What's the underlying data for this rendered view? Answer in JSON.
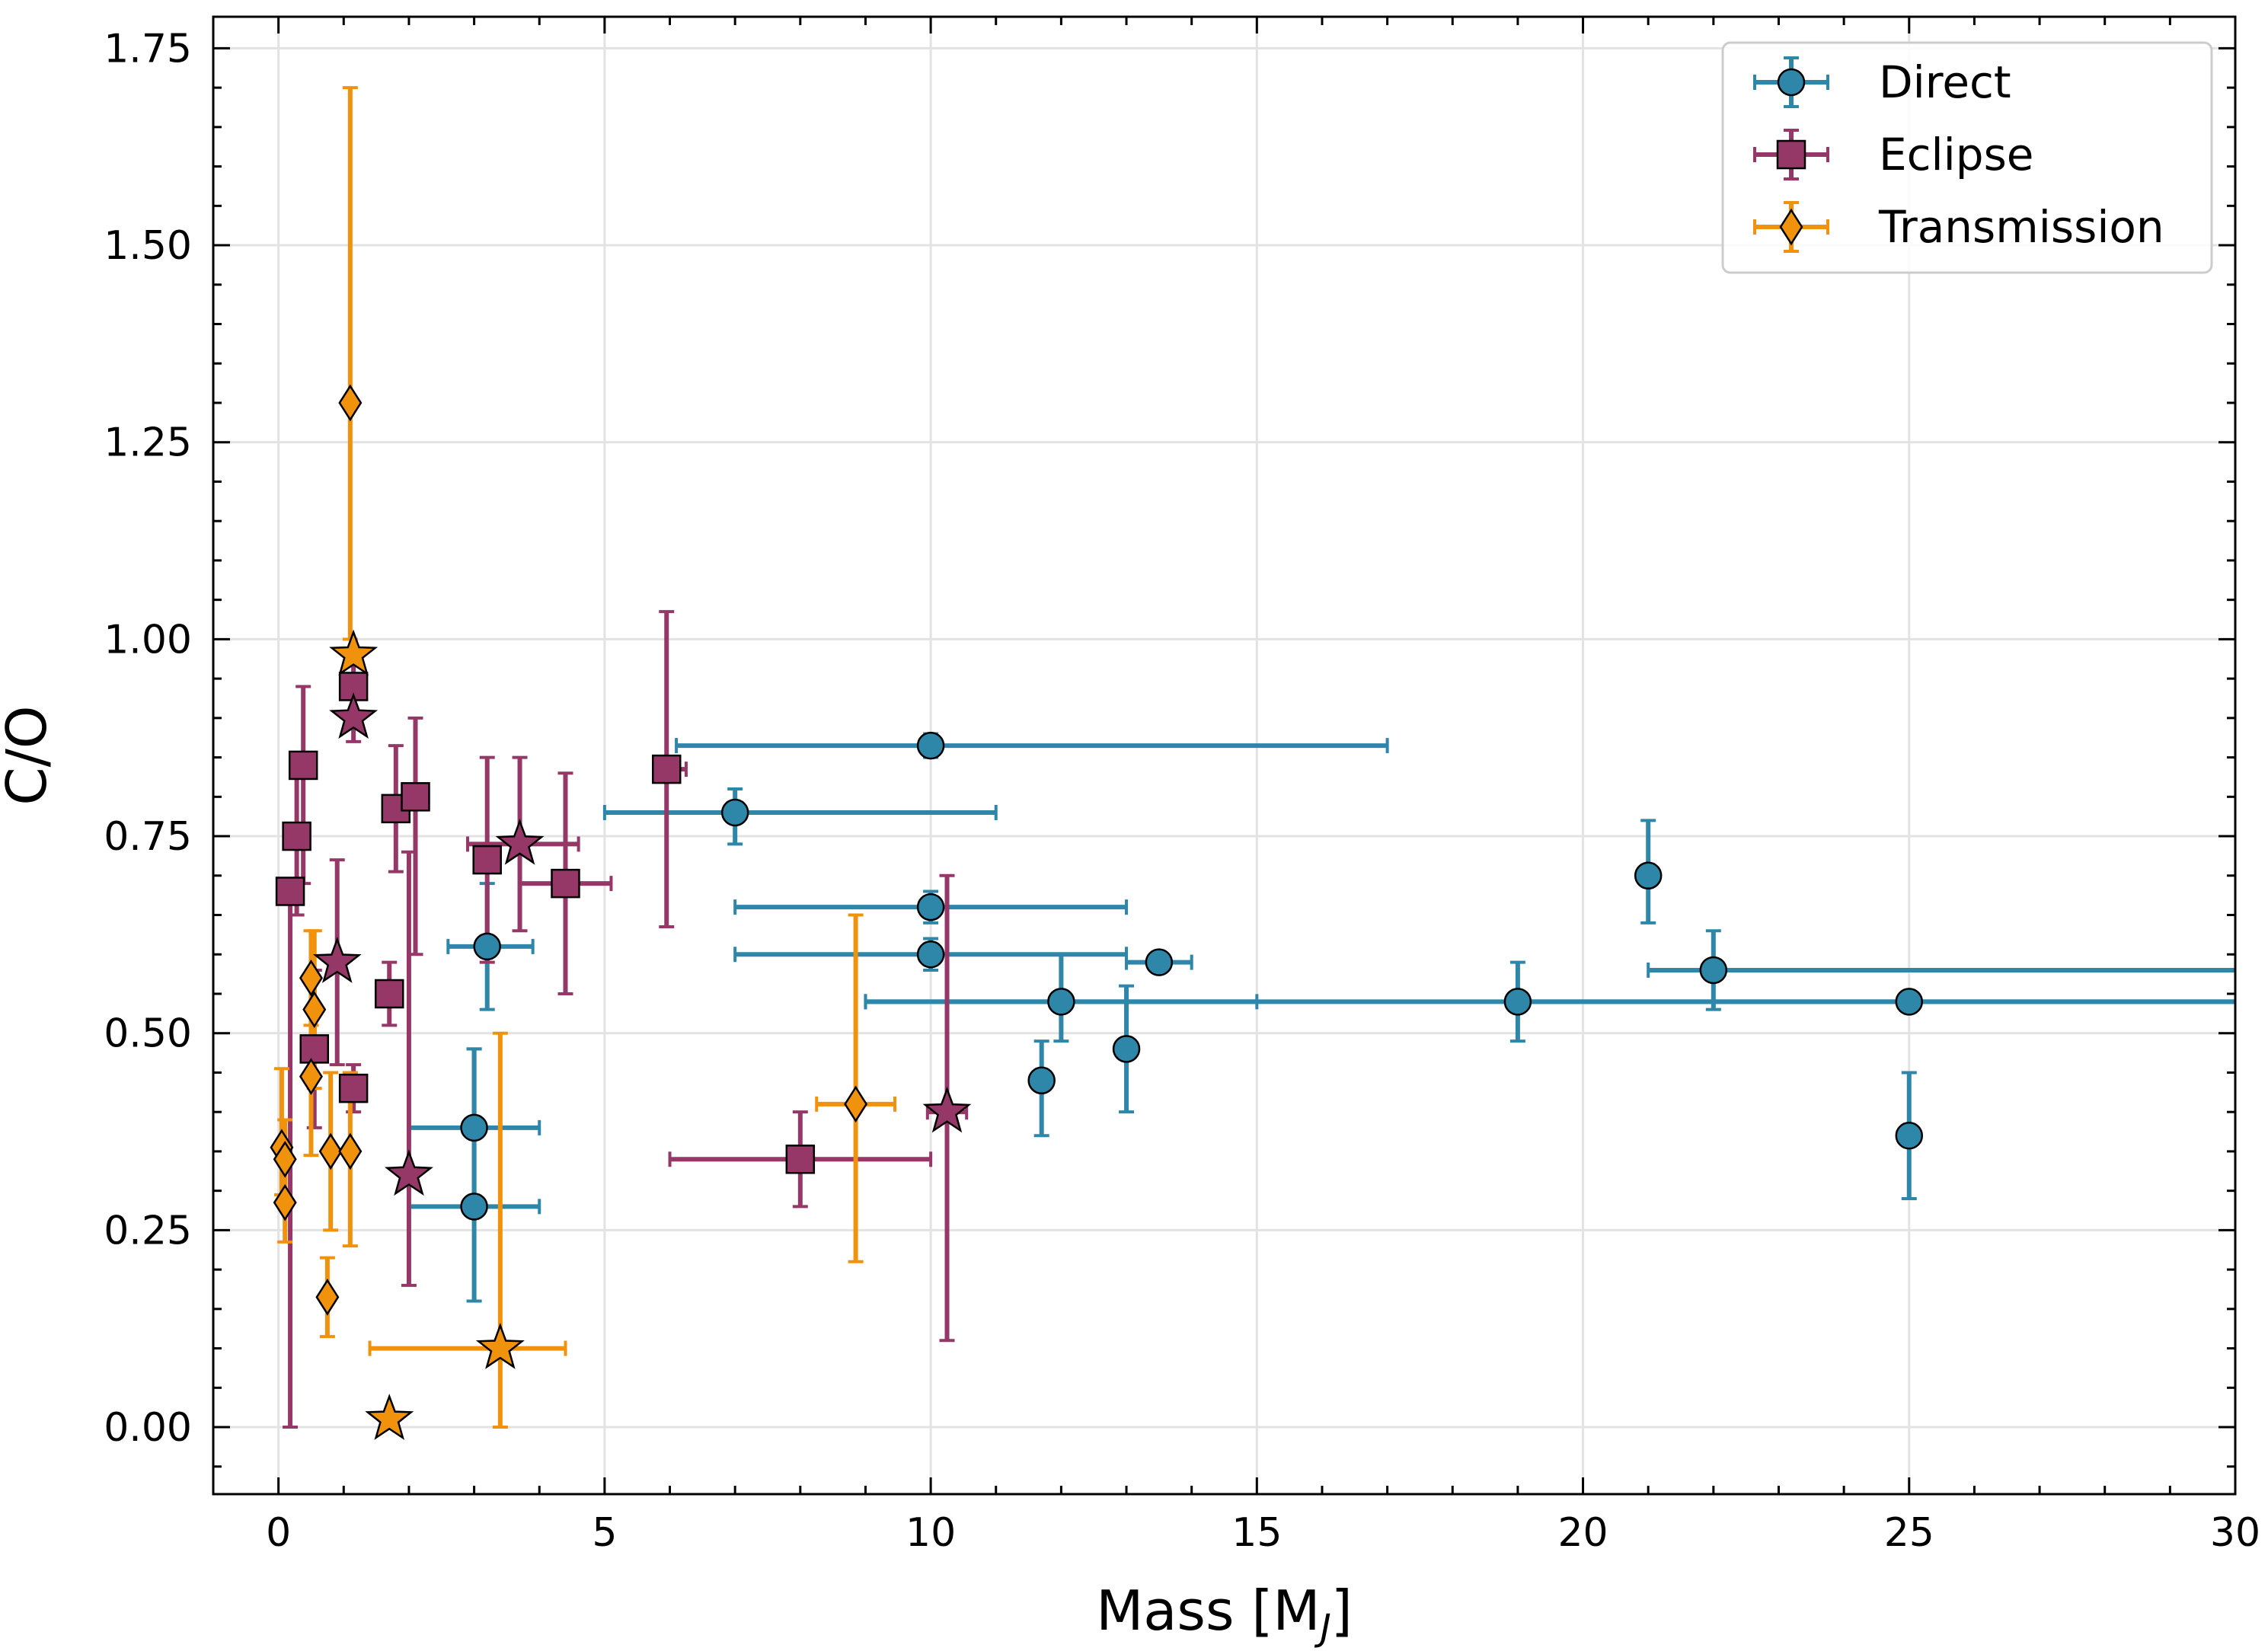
{
  "chart_data": {
    "type": "scatter",
    "title": "",
    "xlabel": "Mass [M",
    "xlabel_subscript": "J",
    "xlabel_suffix": "]",
    "ylabel": "C/O",
    "xlim": [
      -1,
      30
    ],
    "ylim": [
      -0.085,
      1.79
    ],
    "xticks": [
      0,
      5,
      10,
      15,
      20,
      25,
      30
    ],
    "xtick_labels": [
      "0",
      "5",
      "10",
      "15",
      "20",
      "25",
      "30"
    ],
    "yticks": [
      0.0,
      0.25,
      0.5,
      0.75,
      1.0,
      1.25,
      1.5,
      1.75
    ],
    "ytick_labels": [
      "0.00",
      "0.25",
      "0.50",
      "0.75",
      "1.00",
      "1.25",
      "1.50",
      "1.75"
    ],
    "grid": true,
    "legend_position": "top-right",
    "legend": [
      "Direct",
      "Eclipse",
      "Transmission"
    ],
    "series": [
      {
        "name": "Direct",
        "color": "#2e86a8",
        "marker": "circle",
        "points": [
          {
            "x": 10.0,
            "y": 0.865,
            "xerr": [
              3.9,
              7.0
            ],
            "yerr": [
              0.015,
              0.015
            ]
          },
          {
            "x": 7.0,
            "y": 0.78,
            "xerr": [
              2.0,
              4.0
            ],
            "yerr": [
              0.04,
              0.03
            ]
          },
          {
            "x": 3.2,
            "y": 0.61,
            "xerr": [
              0.6,
              0.7
            ],
            "yerr": [
              0.08,
              0.08
            ]
          },
          {
            "x": 10.0,
            "y": 0.66,
            "xerr": [
              3.0,
              3.0
            ],
            "yerr": [
              0.02,
              0.02
            ]
          },
          {
            "x": 10.0,
            "y": 0.6,
            "xerr": [
              3.0,
              3.0
            ],
            "yerr": [
              0.02,
              0.02
            ]
          },
          {
            "x": 12.0,
            "y": 0.54,
            "xerr": [
              3.0,
              3.0
            ],
            "yerr": [
              0.05,
              0.06
            ]
          },
          {
            "x": 13.5,
            "y": 0.59,
            "xerr": [
              0.5,
              0.5
            ],
            "yerr": [
              0.01,
              0.01
            ]
          },
          {
            "x": 11.7,
            "y": 0.44,
            "xerr": [
              0,
              0
            ],
            "yerr": [
              0.07,
              0.05
            ]
          },
          {
            "x": 13.0,
            "y": 0.48,
            "xerr": [
              0,
              0
            ],
            "yerr": [
              0.08,
              0.08
            ]
          },
          {
            "x": 3.0,
            "y": 0.38,
            "xerr": [
              1.0,
              1.0
            ],
            "yerr": [
              0.1,
              0.1
            ]
          },
          {
            "x": 3.0,
            "y": 0.28,
            "xerr": [
              1.0,
              1.0
            ],
            "yerr": [
              0.12,
              0.2
            ]
          },
          {
            "x": 19.0,
            "y": 0.54,
            "xerr": [
              10.0,
              12.0
            ],
            "yerr": [
              0.05,
              0.05
            ]
          },
          {
            "x": 21.0,
            "y": 0.7,
            "xerr": [
              0,
              0
            ],
            "yerr": [
              0.06,
              0.07
            ]
          },
          {
            "x": 22.0,
            "y": 0.58,
            "xerr": [
              1.0,
              9.0
            ],
            "yerr": [
              0.05,
              0.05
            ]
          },
          {
            "x": 25.0,
            "y": 0.54,
            "xerr": [
              6.0,
              6.0
            ],
            "yerr": [
              0.0,
              0.0
            ]
          },
          {
            "x": 25.0,
            "y": 0.37,
            "xerr": [
              0,
              0
            ],
            "yerr": [
              0.08,
              0.08
            ]
          }
        ]
      },
      {
        "name": "Eclipse",
        "color": "#953868",
        "marker": "square",
        "points": [
          {
            "x": 0.18,
            "y": 0.68,
            "xerr": [
              0,
              0
            ],
            "yerr": [
              0.68,
              0.0
            ]
          },
          {
            "x": 0.28,
            "y": 0.75,
            "xerr": [
              0,
              0
            ],
            "yerr": [
              0.1,
              0.1
            ]
          },
          {
            "x": 0.38,
            "y": 0.84,
            "xerr": [
              0,
              0
            ],
            "yerr": [
              0.15,
              0.1
            ]
          },
          {
            "x": 0.55,
            "y": 0.48,
            "xerr": [
              0,
              0
            ],
            "yerr": [
              0.1,
              0.1
            ]
          },
          {
            "x": 1.15,
            "y": 0.94,
            "xerr": [
              0,
              0
            ],
            "yerr": [
              0.04,
              0.04
            ]
          },
          {
            "x": 1.15,
            "y": 0.43,
            "xerr": [
              0,
              0
            ],
            "yerr": [
              0.03,
              0.03
            ]
          },
          {
            "x": 1.7,
            "y": 0.55,
            "xerr": [
              0,
              0
            ],
            "yerr": [
              0.04,
              0.04
            ]
          },
          {
            "x": 1.8,
            "y": 0.785,
            "xerr": [
              0,
              0
            ],
            "yerr": [
              0.08,
              0.08
            ]
          },
          {
            "x": 2.1,
            "y": 0.8,
            "xerr": [
              0,
              0
            ],
            "yerr": [
              0.2,
              0.1
            ]
          },
          {
            "x": 3.2,
            "y": 0.72,
            "xerr": [
              0,
              0
            ],
            "yerr": [
              0.13,
              0.13
            ]
          },
          {
            "x": 4.4,
            "y": 0.69,
            "xerr": [
              0.7,
              0.7
            ],
            "yerr": [
              0.14,
              0.14
            ]
          },
          {
            "x": 5.95,
            "y": 0.835,
            "xerr": [
              0.1,
              0.3
            ],
            "yerr": [
              0.2,
              0.2
            ]
          },
          {
            "x": 8.0,
            "y": 0.34,
            "xerr": [
              2.0,
              2.0
            ],
            "yerr": [
              0.06,
              0.06
            ]
          }
        ]
      },
      {
        "name": "Transmission",
        "color": "#f0920c",
        "marker": "diamond",
        "points": [
          {
            "x": 0.05,
            "y": 0.355,
            "xerr": [
              0,
              0
            ],
            "yerr": [
              0.06,
              0.1
            ]
          },
          {
            "x": 0.1,
            "y": 0.34,
            "xerr": [
              0,
              0
            ],
            "yerr": [
              0.05,
              0.05
            ]
          },
          {
            "x": 0.1,
            "y": 0.285,
            "xerr": [
              0,
              0
            ],
            "yerr": [
              0.05,
              0.05
            ]
          },
          {
            "x": 0.5,
            "y": 0.57,
            "xerr": [
              0,
              0
            ],
            "yerr": [
              0.06,
              0.06
            ]
          },
          {
            "x": 0.55,
            "y": 0.53,
            "xerr": [
              0,
              0
            ],
            "yerr": [
              0.1,
              0.1
            ]
          },
          {
            "x": 0.5,
            "y": 0.445,
            "xerr": [
              0,
              0
            ],
            "yerr": [
              0.1,
              0.12
            ]
          },
          {
            "x": 0.8,
            "y": 0.35,
            "xerr": [
              0,
              0
            ],
            "yerr": [
              0.1,
              0.1
            ]
          },
          {
            "x": 0.75,
            "y": 0.165,
            "xerr": [
              0,
              0
            ],
            "yerr": [
              0.05,
              0.05
            ]
          },
          {
            "x": 1.1,
            "y": 0.35,
            "xerr": [
              0,
              0
            ],
            "yerr": [
              0.12,
              0.1
            ]
          },
          {
            "x": 1.1,
            "y": 1.3,
            "xerr": [
              0,
              0
            ],
            "yerr": [
              0.3,
              0.4
            ]
          },
          {
            "x": 8.85,
            "y": 0.41,
            "xerr": [
              0.6,
              0.6
            ],
            "yerr": [
              0.2,
              0.24
            ]
          }
        ]
      }
    ],
    "stars": [
      {
        "series": "Transmission",
        "x": 1.15,
        "y": 0.98
      },
      {
        "series": "Transmission",
        "x": 3.4,
        "y": 0.1,
        "xerr": [
          2.0,
          1.0
        ],
        "yerr": [
          0.1,
          0.4
        ]
      },
      {
        "series": "Transmission",
        "x": 1.7,
        "y": 0.01
      },
      {
        "series": "Eclipse",
        "x": 1.15,
        "y": 0.9,
        "yerr": [
          0.03,
          0.03
        ]
      },
      {
        "series": "Eclipse",
        "x": 0.9,
        "y": 0.59,
        "yerr": [
          0.13,
          0.13
        ]
      },
      {
        "series": "Eclipse",
        "x": 3.7,
        "y": 0.74,
        "xerr": [
          0.8,
          0.9
        ],
        "yerr": [
          0.11,
          0.11
        ]
      },
      {
        "series": "Eclipse",
        "x": 2.0,
        "y": 0.32,
        "yerr": [
          0.14,
          0.41
        ]
      },
      {
        "series": "Eclipse",
        "x": 10.25,
        "y": 0.4,
        "xerr": [
          0.3,
          0.3
        ],
        "yerr": [
          0.29,
          0.3
        ]
      }
    ]
  }
}
